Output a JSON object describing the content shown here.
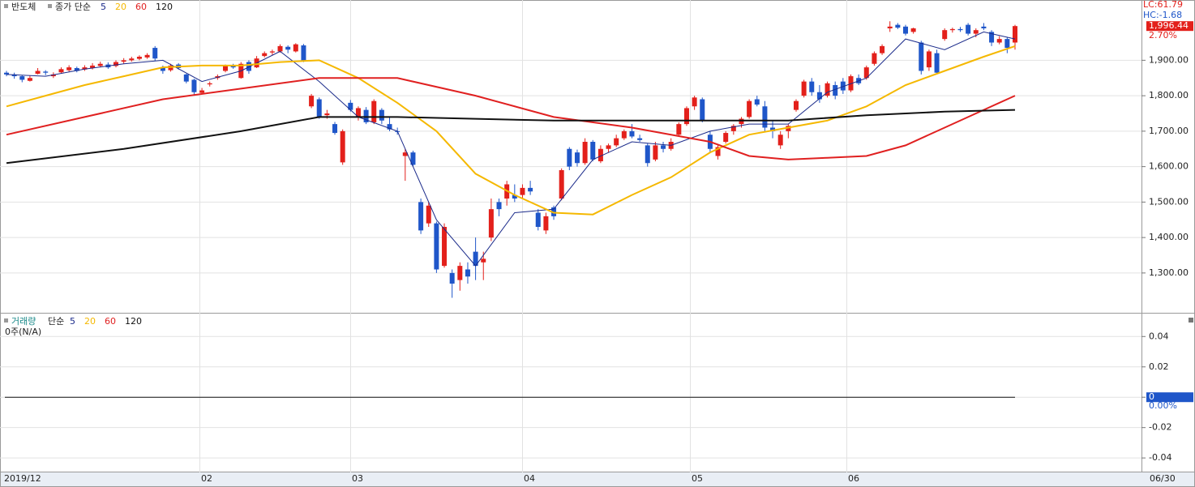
{
  "chart_data": {
    "type": "candlestick",
    "title": "반도체",
    "legend_method": "종가 단순",
    "up_color": "#e3201b",
    "down_color": "#1f56c9",
    "ylim": [
      1190,
      2070
    ],
    "yticks": [
      {
        "value": 1300,
        "label": "1,300.00"
      },
      {
        "value": 1400,
        "label": "1,400.00"
      },
      {
        "value": 1500,
        "label": "1,500.00"
      },
      {
        "value": 1600,
        "label": "1,600.00"
      },
      {
        "value": 1700,
        "label": "1,700.00"
      },
      {
        "value": 1800,
        "label": "1,800.00"
      },
      {
        "value": 1900,
        "label": "1,900.00"
      }
    ],
    "grid": true,
    "lc_label": "LC:61.79",
    "hc_label": "HC:-1.68",
    "last_value": {
      "value": 1996.44,
      "label": "1,996.44"
    },
    "change_label": "2.70%",
    "x_labels": [
      "2019/12",
      "02",
      "03",
      "04",
      "05",
      "06"
    ],
    "end_label": "06/30",
    "ohlc": [
      [
        1865,
        1870,
        1855,
        1860
      ],
      [
        1860,
        1865,
        1848,
        1855
      ],
      [
        1855,
        1858,
        1838,
        1845
      ],
      [
        1842,
        1856,
        1840,
        1850
      ],
      [
        1862,
        1878,
        1860,
        1870
      ],
      [
        1868,
        1872,
        1858,
        1865
      ],
      [
        1855,
        1866,
        1850,
        1860
      ],
      [
        1866,
        1880,
        1862,
        1875
      ],
      [
        1872,
        1886,
        1868,
        1880
      ],
      [
        1878,
        1882,
        1866,
        1870
      ],
      [
        1874,
        1886,
        1870,
        1880
      ],
      [
        1878,
        1892,
        1874,
        1885
      ],
      [
        1884,
        1896,
        1880,
        1890
      ],
      [
        1888,
        1894,
        1876,
        1880
      ],
      [
        1884,
        1900,
        1880,
        1895
      ],
      [
        1896,
        1906,
        1890,
        1900
      ],
      [
        1900,
        1910,
        1896,
        1905
      ],
      [
        1904,
        1914,
        1900,
        1910
      ],
      [
        1908,
        1920,
        1904,
        1915
      ],
      [
        1935,
        1940,
        1898,
        1905
      ],
      [
        1880,
        1885,
        1862,
        1870
      ],
      [
        1872,
        1890,
        1868,
        1885
      ],
      [
        1888,
        1892,
        1874,
        1878
      ],
      [
        1860,
        1862,
        1835,
        1840
      ],
      [
        1845,
        1848,
        1800,
        1810
      ],
      [
        1808,
        1822,
        1804,
        1815
      ],
      [
        1832,
        1840,
        1826,
        1835
      ],
      [
        1850,
        1860,
        1845,
        1855
      ],
      [
        1870,
        1888,
        1866,
        1885
      ],
      [
        1886,
        1890,
        1876,
        1880
      ],
      [
        1850,
        1895,
        1848,
        1890
      ],
      [
        1895,
        1900,
        1862,
        1870
      ],
      [
        1880,
        1912,
        1878,
        1905
      ],
      [
        1912,
        1925,
        1908,
        1920
      ],
      [
        1922,
        1930,
        1915,
        1925
      ],
      [
        1925,
        1945,
        1922,
        1940
      ],
      [
        1938,
        1942,
        1920,
        1930
      ],
      [
        1925,
        1948,
        1922,
        1945
      ],
      [
        1942,
        1946,
        1895,
        1900
      ],
      [
        1770,
        1805,
        1765,
        1800
      ],
      [
        1790,
        1795,
        1735,
        1740
      ],
      [
        1745,
        1760,
        1735,
        1750
      ],
      [
        1720,
        1726,
        1690,
        1695
      ],
      [
        1612,
        1705,
        1605,
        1700
      ],
      [
        1780,
        1788,
        1755,
        1760
      ],
      [
        1740,
        1770,
        1730,
        1765
      ],
      [
        1760,
        1768,
        1720,
        1725
      ],
      [
        1725,
        1790,
        1720,
        1785
      ],
      [
        1760,
        1765,
        1720,
        1730
      ],
      [
        1720,
        1740,
        1700,
        1705
      ],
      [
        1700,
        1710,
        1690,
        1698
      ],
      [
        1630,
        1650,
        1560,
        1640
      ],
      [
        1640,
        1645,
        1600,
        1605
      ],
      [
        1500,
        1510,
        1410,
        1420
      ],
      [
        1440,
        1500,
        1430,
        1490
      ],
      [
        1440,
        1445,
        1300,
        1310
      ],
      [
        1320,
        1440,
        1315,
        1430
      ],
      [
        1300,
        1310,
        1230,
        1270
      ],
      [
        1280,
        1330,
        1250,
        1320
      ],
      [
        1310,
        1330,
        1270,
        1290
      ],
      [
        1360,
        1400,
        1280,
        1320
      ],
      [
        1330,
        1360,
        1280,
        1340
      ],
      [
        1400,
        1510,
        1390,
        1480
      ],
      [
        1500,
        1510,
        1460,
        1480
      ],
      [
        1510,
        1560,
        1490,
        1550
      ],
      [
        1520,
        1550,
        1500,
        1510
      ],
      [
        1520,
        1550,
        1510,
        1540
      ],
      [
        1540,
        1560,
        1520,
        1530
      ],
      [
        1470,
        1480,
        1420,
        1430
      ],
      [
        1420,
        1470,
        1410,
        1460
      ],
      [
        1485,
        1490,
        1450,
        1460
      ],
      [
        1510,
        1595,
        1505,
        1590
      ],
      [
        1650,
        1655,
        1590,
        1600
      ],
      [
        1640,
        1648,
        1600,
        1610
      ],
      [
        1610,
        1680,
        1605,
        1670
      ],
      [
        1670,
        1675,
        1615,
        1620
      ],
      [
        1615,
        1660,
        1610,
        1650
      ],
      [
        1650,
        1665,
        1640,
        1660
      ],
      [
        1660,
        1690,
        1655,
        1680
      ],
      [
        1680,
        1705,
        1675,
        1700
      ],
      [
        1700,
        1720,
        1680,
        1685
      ],
      [
        1680,
        1690,
        1670,
        1675
      ],
      [
        1660,
        1665,
        1600,
        1610
      ],
      [
        1620,
        1670,
        1615,
        1660
      ],
      [
        1660,
        1670,
        1640,
        1650
      ],
      [
        1650,
        1680,
        1645,
        1670
      ],
      [
        1690,
        1725,
        1685,
        1720
      ],
      [
        1720,
        1770,
        1715,
        1765
      ],
      [
        1770,
        1800,
        1760,
        1795
      ],
      [
        1790,
        1795,
        1725,
        1730
      ],
      [
        1690,
        1700,
        1640,
        1650
      ],
      [
        1630,
        1660,
        1620,
        1655
      ],
      [
        1670,
        1700,
        1665,
        1695
      ],
      [
        1700,
        1720,
        1690,
        1715
      ],
      [
        1720,
        1740,
        1710,
        1735
      ],
      [
        1740,
        1790,
        1735,
        1785
      ],
      [
        1790,
        1800,
        1770,
        1775
      ],
      [
        1770,
        1785,
        1700,
        1710
      ],
      [
        1710,
        1730,
        1680,
        1700
      ],
      [
        1660,
        1700,
        1650,
        1690
      ],
      [
        1700,
        1720,
        1680,
        1715
      ],
      [
        1760,
        1790,
        1755,
        1785
      ],
      [
        1800,
        1845,
        1795,
        1840
      ],
      [
        1840,
        1850,
        1800,
        1810
      ],
      [
        1810,
        1830,
        1780,
        1790
      ],
      [
        1800,
        1840,
        1795,
        1835
      ],
      [
        1830,
        1840,
        1790,
        1800
      ],
      [
        1840,
        1850,
        1805,
        1815
      ],
      [
        1815,
        1860,
        1810,
        1855
      ],
      [
        1850,
        1860,
        1830,
        1835
      ],
      [
        1850,
        1885,
        1845,
        1880
      ],
      [
        1890,
        1925,
        1885,
        1920
      ],
      [
        1920,
        1945,
        1915,
        1940
      ],
      [
        1990,
        2010,
        1980,
        1995
      ],
      [
        2000,
        2005,
        1988,
        1992
      ],
      [
        1995,
        2000,
        1970,
        1975
      ],
      [
        1980,
        1992,
        1975,
        1990
      ],
      [
        1950,
        1955,
        1860,
        1870
      ],
      [
        1880,
        1930,
        1870,
        1925
      ],
      [
        1920,
        1930,
        1860,
        1865
      ],
      [
        1960,
        1990,
        1955,
        1985
      ],
      [
        1985,
        1992,
        1978,
        1988
      ],
      [
        1988,
        1994,
        1980,
        1985
      ],
      [
        2000,
        2005,
        1970,
        1975
      ],
      [
        1975,
        1990,
        1965,
        1985
      ],
      [
        1995,
        2005,
        1985,
        1990
      ],
      [
        1980,
        1985,
        1940,
        1950
      ],
      [
        1950,
        1968,
        1945,
        1960
      ],
      [
        1960,
        1965,
        1920,
        1935
      ],
      [
        1950,
        2000,
        1930,
        1996.44
      ]
    ],
    "series": [
      {
        "name": "5",
        "color": "#1a2a8a",
        "x": [
          0,
          5,
          10,
          15,
          20,
          25,
          30,
          35,
          40,
          45,
          50,
          55,
          60,
          65,
          70,
          75,
          80,
          85,
          90,
          95,
          100,
          105,
          110,
          115,
          120,
          125,
          129
        ],
        "values": [
          1860,
          1855,
          1875,
          1890,
          1900,
          1840,
          1870,
          1925,
          1840,
          1740,
          1700,
          1450,
          1320,
          1470,
          1480,
          1620,
          1670,
          1660,
          1700,
          1720,
          1720,
          1810,
          1850,
          1960,
          1930,
          1980,
          1960
        ]
      },
      {
        "name": "20",
        "color": "#f5b800",
        "x": [
          0,
          5,
          10,
          15,
          20,
          25,
          30,
          35,
          40,
          45,
          50,
          55,
          60,
          65,
          70,
          75,
          80,
          85,
          90,
          95,
          100,
          105,
          110,
          115,
          120,
          125,
          129
        ],
        "values": [
          1770,
          1800,
          1830,
          1855,
          1880,
          1885,
          1885,
          1895,
          1900,
          1850,
          1780,
          1700,
          1580,
          1520,
          1470,
          1465,
          1520,
          1570,
          1640,
          1690,
          1710,
          1730,
          1770,
          1830,
          1870,
          1910,
          1940
        ]
      },
      {
        "name": "60",
        "color": "#e02020",
        "x": [
          0,
          10,
          20,
          30,
          40,
          50,
          60,
          70,
          80,
          90,
          95,
          100,
          105,
          110,
          115,
          120,
          125,
          129
        ],
        "values": [
          1690,
          1740,
          1790,
          1820,
          1850,
          1850,
          1800,
          1740,
          1710,
          1670,
          1630,
          1620,
          1625,
          1630,
          1660,
          1710,
          1760,
          1800
        ]
      },
      {
        "name": "120",
        "color": "#111111",
        "x": [
          0,
          15,
          30,
          40,
          50,
          60,
          70,
          80,
          90,
          100,
          110,
          120,
          129
        ],
        "values": [
          1610,
          1650,
          1700,
          1740,
          1740,
          1735,
          1730,
          1730,
          1730,
          1730,
          1745,
          1755,
          1760
        ]
      }
    ]
  },
  "volume_panel": {
    "title": "거래량",
    "legend_method": "단순",
    "ma_names": [
      "5",
      "20",
      "60",
      "120"
    ],
    "note": "0주(N/A)",
    "ylim": [
      -0.049,
      0.0535
    ],
    "yticks": [
      0.04,
      0.02,
      0,
      -0.02,
      -0.04
    ],
    "last_value": 0,
    "change_label": "0.00%"
  }
}
